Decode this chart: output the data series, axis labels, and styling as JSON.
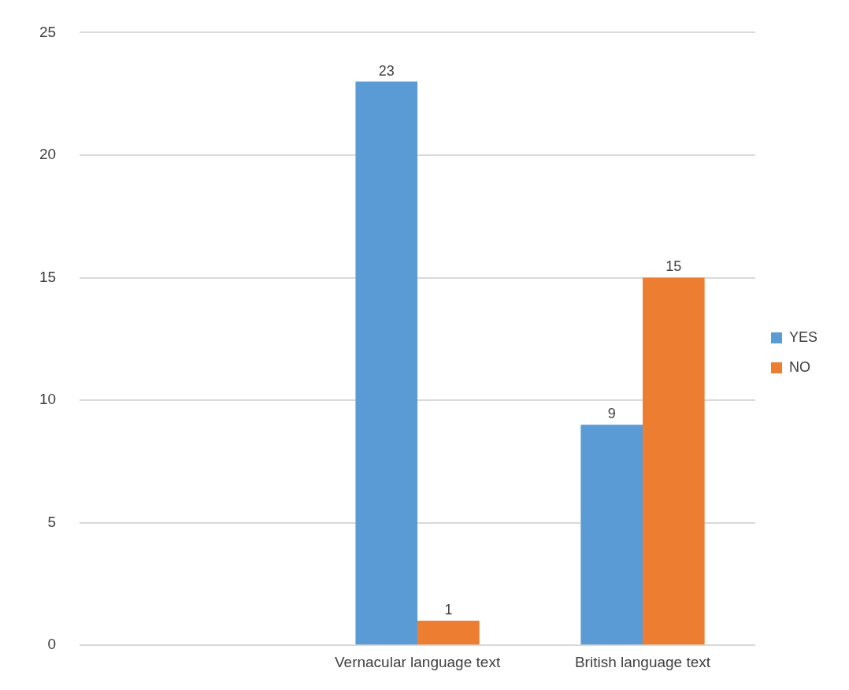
{
  "chart_data": {
    "type": "bar",
    "categories": [
      null,
      "Vernacular language text",
      "British language text"
    ],
    "series": [
      {
        "name": "YES",
        "color": "#5b9bd5",
        "values": [
          null,
          23,
          9
        ]
      },
      {
        "name": "NO",
        "color": "#ed7d31",
        "values": [
          null,
          1,
          15
        ]
      }
    ],
    "ylim": [
      0,
      25
    ],
    "yticks": [
      0,
      5,
      10,
      15,
      20,
      25
    ],
    "grid": "y",
    "legend": "right",
    "data_labels": true
  }
}
